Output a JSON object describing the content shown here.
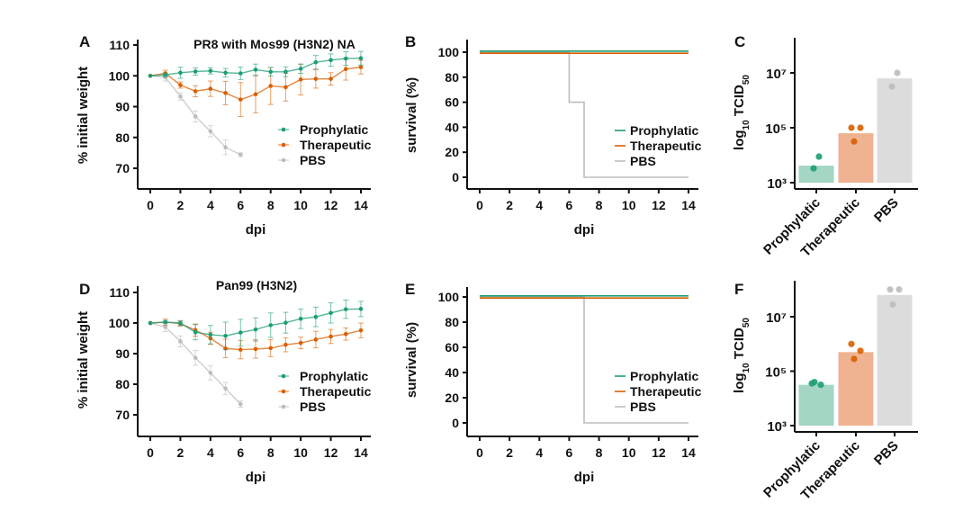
{
  "colors": {
    "Prophylatic": "#1b9e77",
    "Therapeutic": "#d95f02",
    "PBS": "#bdbdbd",
    "bar_Prophylatic": "#a3d6c3",
    "bar_Therapeutic": "#efb392",
    "bar_PBS": "#dcdcdc"
  },
  "chart_data": [
    {
      "panel": "A",
      "type": "line",
      "title": "PR8 with Mos99 (H3N2) NA",
      "xlabel": "dpi",
      "ylabel": "% initial weight",
      "xlim": [
        0,
        14
      ],
      "ylim": [
        70,
        110
      ],
      "xtick_labels": [
        "0",
        "2",
        "4",
        "6",
        "8",
        "10",
        "12",
        "14"
      ],
      "ytick_labels": [
        "70",
        "80",
        "90",
        "100",
        "110"
      ],
      "legend_position": "right",
      "series": [
        {
          "name": "Prophylatic",
          "x": [
            0,
            1,
            2,
            3,
            4,
            5,
            6,
            7,
            8,
            9,
            10,
            11,
            12,
            13,
            14
          ],
          "y": [
            100,
            100.3,
            101,
            101.4,
            101.6,
            101,
            100.8,
            102,
            101.3,
            101.3,
            102.3,
            104.4,
            105.1,
            105.6,
            105.7
          ],
          "err": [
            0,
            0.6,
            1.8,
            1.2,
            1,
            1.4,
            2,
            1.8,
            1.4,
            1.6,
            1.5,
            2.2,
            2,
            2.2,
            2.2
          ]
        },
        {
          "name": "Therapeutic",
          "x": [
            0,
            1,
            2,
            3,
            4,
            5,
            6,
            7,
            8,
            9,
            10,
            11,
            12,
            13,
            14
          ],
          "y": [
            100,
            100.8,
            97,
            95,
            95.8,
            94.4,
            92.3,
            94,
            96.7,
            96.3,
            98.8,
            99,
            99,
            102.2,
            102.8
          ],
          "err": [
            0,
            1,
            1,
            1.8,
            2.5,
            3.8,
            5.5,
            6,
            6,
            4.5,
            5,
            3,
            2,
            3.6,
            2.2
          ]
        },
        {
          "name": "PBS",
          "x": [
            0,
            1,
            2,
            3,
            4,
            5,
            6
          ],
          "y": [
            100,
            99.5,
            93.3,
            86.8,
            82,
            76.8,
            74.4
          ],
          "err": [
            0,
            1.2,
            1.2,
            1.8,
            1.8,
            2.4,
            0.6
          ]
        }
      ]
    },
    {
      "panel": "B",
      "type": "line",
      "subtype": "step",
      "xlabel": "dpi",
      "ylabel": "survival (%)",
      "xlim": [
        0,
        14
      ],
      "ylim": [
        0,
        100
      ],
      "xtick_labels": [
        "0",
        "2",
        "4",
        "6",
        "8",
        "10",
        "12",
        "14"
      ],
      "ytick_labels": [
        "0",
        "20",
        "40",
        "60",
        "80",
        "100"
      ],
      "legend_position": "right",
      "series": [
        {
          "name": "Prophylatic",
          "x": [
            0,
            14
          ],
          "y": [
            100,
            100
          ]
        },
        {
          "name": "Therapeutic",
          "x": [
            0,
            14
          ],
          "y": [
            100,
            100
          ]
        },
        {
          "name": "PBS",
          "x": [
            0,
            6,
            7,
            14
          ],
          "y": [
            100,
            60,
            0,
            0
          ]
        }
      ]
    },
    {
      "panel": "C",
      "type": "bar",
      "scale": "log",
      "ylabel_parts": [
        "log",
        "10",
        " TCID",
        "50"
      ],
      "ylim_log10": [
        3,
        8.2
      ],
      "ytick_labels": [
        "10³",
        "10⁵",
        "10⁷"
      ],
      "ytick_log10": [
        3,
        5,
        7
      ],
      "categories": [
        "Prophylatic",
        "Therapeutic",
        "PBS"
      ],
      "values_log10": [
        3.62,
        4.8,
        6.8
      ],
      "points_log10": [
        [
          3.95,
          3.52
        ],
        [
          5.0,
          5.0,
          4.5
        ],
        [
          7.0,
          6.5
        ]
      ]
    },
    {
      "panel": "D",
      "type": "line",
      "title": "Pan99 (H3N2)",
      "xlabel": "dpi",
      "ylabel": "% initial weight",
      "xlim": [
        0,
        14
      ],
      "ylim": [
        70,
        110
      ],
      "xtick_labels": [
        "0",
        "2",
        "4",
        "6",
        "8",
        "10",
        "12",
        "14"
      ],
      "ytick_labels": [
        "70",
        "80",
        "90",
        "100",
        "110"
      ],
      "legend_position": "right",
      "series": [
        {
          "name": "Prophylatic",
          "x": [
            0,
            1,
            2,
            3,
            4,
            5,
            6,
            7,
            8,
            9,
            10,
            11,
            12,
            13,
            14
          ],
          "y": [
            100,
            100.3,
            100,
            97,
            96.2,
            95.8,
            96.9,
            97.9,
            99.3,
            100.1,
            101.4,
            102,
            103.3,
            104.5,
            104.6
          ],
          "err": [
            0,
            0.5,
            0.8,
            2.5,
            3,
            4.5,
            4.3,
            3.8,
            4,
            3.4,
            3.2,
            3.2,
            3.3,
            3,
            2.5
          ]
        },
        {
          "name": "Therapeutic",
          "x": [
            0,
            1,
            2,
            3,
            4,
            5,
            6,
            7,
            8,
            9,
            10,
            11,
            12,
            13,
            14
          ],
          "y": [
            100,
            100.3,
            99.8,
            97.7,
            95,
            91.7,
            91.3,
            91.5,
            91.8,
            92.9,
            93.5,
            94.6,
            95.6,
            96.4,
            97.6
          ],
          "err": [
            0,
            1,
            0.8,
            2,
            2,
            3,
            3,
            3,
            2.8,
            2.3,
            1.9,
            2.7,
            2.3,
            2,
            2.4
          ]
        },
        {
          "name": "PBS",
          "x": [
            0,
            1,
            2,
            3,
            4,
            5,
            6
          ],
          "y": [
            100,
            98.7,
            94,
            88.6,
            83.7,
            78.6,
            73.5
          ],
          "err": [
            0,
            1.5,
            1.8,
            2.4,
            2.3,
            2,
            1
          ]
        }
      ]
    },
    {
      "panel": "E",
      "type": "line",
      "subtype": "step",
      "xlabel": "dpi",
      "ylabel": "survival (%)",
      "xlim": [
        0,
        14
      ],
      "ylim": [
        0,
        100
      ],
      "xtick_labels": [
        "0",
        "2",
        "4",
        "6",
        "8",
        "10",
        "12",
        "14"
      ],
      "ytick_labels": [
        "0",
        "20",
        "40",
        "60",
        "80",
        "100"
      ],
      "legend_position": "right",
      "series": [
        {
          "name": "Prophylatic",
          "x": [
            0,
            14
          ],
          "y": [
            100,
            100
          ]
        },
        {
          "name": "Therapeutic",
          "x": [
            0,
            14
          ],
          "y": [
            100,
            100
          ]
        },
        {
          "name": "PBS",
          "x": [
            0,
            7,
            14
          ],
          "y": [
            100,
            0,
            0
          ]
        }
      ]
    },
    {
      "panel": "F",
      "type": "bar",
      "scale": "log",
      "ylabel_parts": [
        "log",
        "10",
        " TCID",
        "50"
      ],
      "ylim_log10": [
        3,
        8.2
      ],
      "ytick_labels": [
        "10³",
        "10⁵",
        "10⁷"
      ],
      "ytick_log10": [
        3,
        5,
        7
      ],
      "categories": [
        "Prophylatic",
        "Therapeutic",
        "PBS"
      ],
      "values_log10": [
        4.5,
        5.7,
        7.8
      ],
      "points_log10": [
        [
          4.55,
          4.5,
          4.6
        ],
        [
          6.0,
          5.75,
          5.45
        ],
        [
          8.0,
          8.0,
          7.45
        ]
      ]
    }
  ]
}
